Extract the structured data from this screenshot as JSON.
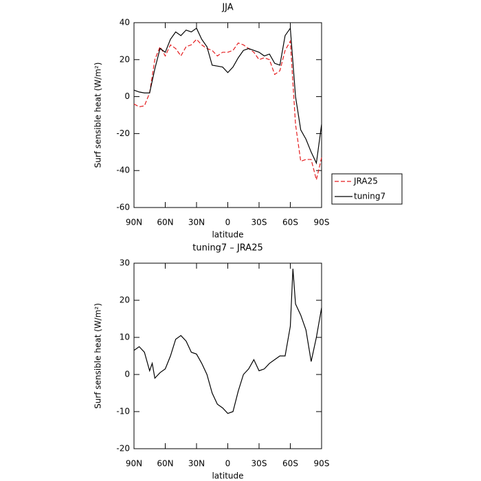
{
  "chart_data": [
    {
      "type": "line",
      "title": "JJA",
      "xlabel": "latitude",
      "ylabel": "Surf sensible heat (W/m²)",
      "x": [
        90,
        85,
        80,
        75,
        70,
        65,
        60,
        55,
        50,
        45,
        40,
        35,
        30,
        25,
        20,
        15,
        10,
        5,
        0,
        -5,
        -10,
        -15,
        -20,
        -25,
        -30,
        -35,
        -40,
        -45,
        -50,
        -55,
        -60,
        -65,
        -70,
        -75,
        -80,
        -85,
        -90
      ],
      "series": [
        {
          "name": "JRA25",
          "color": "#e41a1c",
          "dash": true,
          "values": [
            -4,
            -5.5,
            -5,
            2,
            20,
            27,
            22,
            28,
            26,
            22,
            27,
            28,
            31,
            28,
            26,
            25,
            22,
            24,
            24,
            25,
            29,
            28,
            26,
            24,
            20,
            21,
            20,
            12,
            14,
            25,
            30,
            -15,
            -35,
            -34,
            -34,
            -45,
            -33
          ]
        },
        {
          "name": "tuning7",
          "color": "#000000",
          "dash": false,
          "values": [
            3.5,
            2.5,
            2,
            2,
            15,
            26,
            24,
            31,
            35,
            33,
            36,
            35,
            37,
            31,
            27,
            17,
            16.5,
            16,
            13,
            16,
            21,
            25,
            26,
            25,
            24,
            22,
            23,
            18,
            17,
            33,
            37,
            0,
            -18,
            -23,
            -30,
            -36,
            -15
          ]
        }
      ],
      "xlim": [
        90,
        -90
      ],
      "xticks": [
        {
          "value": 90,
          "label": "90N"
        },
        {
          "value": 60,
          "label": "60N"
        },
        {
          "value": 30,
          "label": "30N"
        },
        0,
        {
          "value": -30,
          "label": "30S"
        },
        {
          "value": -60,
          "label": "60S"
        },
        {
          "value": -90,
          "label": "90S"
        }
      ],
      "ylim": [
        -60,
        40
      ],
      "yticks": [
        -60,
        -40,
        -20,
        0,
        20,
        40
      ],
      "legend": "right"
    },
    {
      "type": "line",
      "title": "tuning7 – JRA25",
      "xlabel": "latitude",
      "ylabel": "Surf sensible heat (W/m²)",
      "x": [
        90,
        85,
        80,
        75,
        72.5,
        70,
        65,
        60,
        55,
        50,
        45,
        40,
        35,
        30,
        25,
        20,
        15,
        10,
        5,
        0,
        -5,
        -10,
        -15,
        -20,
        -25,
        -30,
        -35,
        -40,
        -45,
        -50,
        -55,
        -60,
        -62.5,
        -65,
        -70,
        -75,
        -80,
        -85,
        -90
      ],
      "values": [
        6.5,
        7.5,
        6,
        1,
        3,
        -1,
        0.5,
        1.5,
        5,
        9.5,
        10.5,
        9,
        6,
        5.5,
        3,
        0,
        -5,
        -8,
        -9,
        -10.5,
        -10,
        -4.5,
        0,
        1.5,
        4,
        1,
        1.5,
        3,
        4,
        5,
        5,
        13,
        28.5,
        19,
        16,
        12,
        3.5,
        10,
        18
      ],
      "color": "#000000",
      "xlim": [
        90,
        -90
      ],
      "xticks": [
        {
          "value": 90,
          "label": "90N"
        },
        {
          "value": 60,
          "label": "60N"
        },
        {
          "value": 30,
          "label": "30N"
        },
        0,
        {
          "value": -30,
          "label": "30S"
        },
        {
          "value": -60,
          "label": "60S"
        },
        {
          "value": -90,
          "label": "90S"
        }
      ],
      "ylim": [
        -20,
        30
      ],
      "yticks": [
        -20,
        -10,
        0,
        10,
        20,
        30
      ]
    }
  ]
}
